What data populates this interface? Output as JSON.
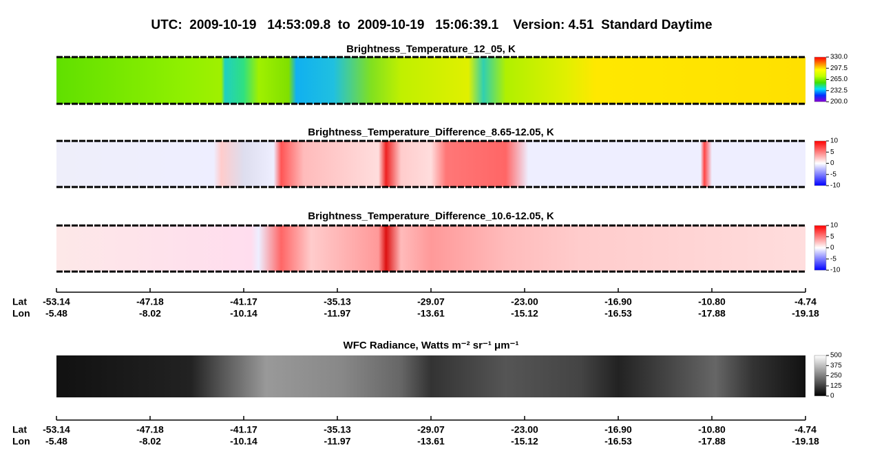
{
  "chart_data": {
    "type": "heatmap",
    "title": "UTC:  2009-10-19   14:53:09.8  to  2009-10-19   15:06:39.1    Version: 4.51  Standard Daytime",
    "panels": [
      {
        "title": "Brightness_Temperature_12_05, K",
        "colorbar": {
          "lim": [
            200,
            330
          ],
          "colors": [
            "#8a00d4",
            "#0030ff",
            "#00e0ff",
            "#40e000",
            "#c0ff00",
            "#ffff00",
            "#ff8000",
            "#ff0000"
          ],
          "ticks": [
            {
              "value": 330,
              "label": "330.0"
            },
            297.5,
            {
              "value": 265,
              "label": "265.0"
            },
            232.5,
            {
              "value": 200,
              "label": "200.0"
            }
          ]
        }
      },
      {
        "title": "Brightness_Temperature_Difference_8.65-12.05, K",
        "colorbar": {
          "lim": [
            -10,
            10
          ],
          "colors": [
            "#0000ff",
            "#ffffff",
            "#ff0000"
          ],
          "ticks": [
            10,
            5,
            0,
            -5,
            -10
          ]
        }
      },
      {
        "title": "Brightness_Temperature_Difference_10.6-12.05, K",
        "colorbar": {
          "lim": [
            -10,
            10
          ],
          "colors": [
            "#0000ff",
            "#ffffff",
            "#ff0000"
          ],
          "ticks": [
            10,
            5,
            0,
            -5,
            -10
          ]
        }
      },
      {
        "title": "WFC Radiance, Watts m⁻² sr⁻¹ μm⁻¹",
        "colorbar": {
          "lim": [
            0,
            500
          ],
          "colors": [
            "#000000",
            "#ffffff"
          ],
          "ticks": [
            500,
            375,
            250,
            125,
            0
          ]
        }
      }
    ],
    "axis_labels": [
      "Lat",
      "Lon"
    ],
    "lat": [
      -53.14,
      -47.18,
      -41.17,
      -35.13,
      -29.07,
      -23.0,
      -16.9,
      -10.8,
      -4.74
    ],
    "lon": [
      -5.48,
      -8.02,
      -10.14,
      -11.97,
      -13.61,
      -15.12,
      -16.53,
      -17.88,
      -19.18
    ]
  }
}
